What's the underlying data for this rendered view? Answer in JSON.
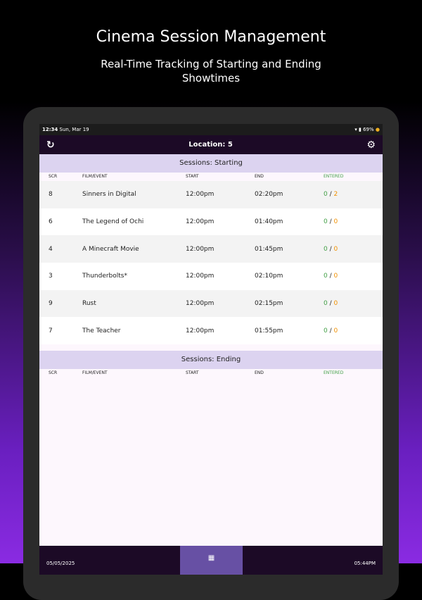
{
  "header": {
    "title": "Cinema Session Management",
    "subtitle": "Real-Time Tracking of Starting and Ending Showtimes"
  },
  "status_bar": {
    "time": "12:34",
    "date": "Sun, Mar 19",
    "battery": "69%"
  },
  "app_bar": {
    "title": "Location: 5",
    "left_icon": "refresh-icon",
    "right_icon": "gear-icon"
  },
  "columns": [
    "SCR",
    "FILM/EVENT",
    "START",
    "END",
    "ENTERED"
  ],
  "starting": {
    "title": "Sessions: Starting",
    "rows": [
      {
        "scr": "8",
        "film": "Sinners in Digital",
        "start": "12:00pm",
        "end": "02:20pm",
        "entered": "0",
        "total": "2"
      },
      {
        "scr": "6",
        "film": "The Legend of Ochi",
        "start": "12:00pm",
        "end": "01:40pm",
        "entered": "0",
        "total": "0"
      },
      {
        "scr": "4",
        "film": "A Minecraft Movie",
        "start": "12:00pm",
        "end": "01:45pm",
        "entered": "0",
        "total": "0"
      },
      {
        "scr": "3",
        "film": "Thunderbolts*",
        "start": "12:00pm",
        "end": "02:10pm",
        "entered": "0",
        "total": "0"
      },
      {
        "scr": "9",
        "film": "Rust",
        "start": "12:00pm",
        "end": "02:15pm",
        "entered": "0",
        "total": "0"
      },
      {
        "scr": "7",
        "film": "The Teacher",
        "start": "12:00pm",
        "end": "01:55pm",
        "entered": "0",
        "total": "0"
      }
    ]
  },
  "ending": {
    "title": "Sessions: Ending",
    "rows": []
  },
  "bottom_bar": {
    "date": "05/05/2025",
    "time": "05:44PM",
    "center_icon": "qr-code-icon"
  },
  "colors": {
    "app_bar": "#1c0a26",
    "section_header": "#dcd3f0",
    "entered": "#43a047",
    "total": "#f09000",
    "qr_button": "#6750a4"
  }
}
